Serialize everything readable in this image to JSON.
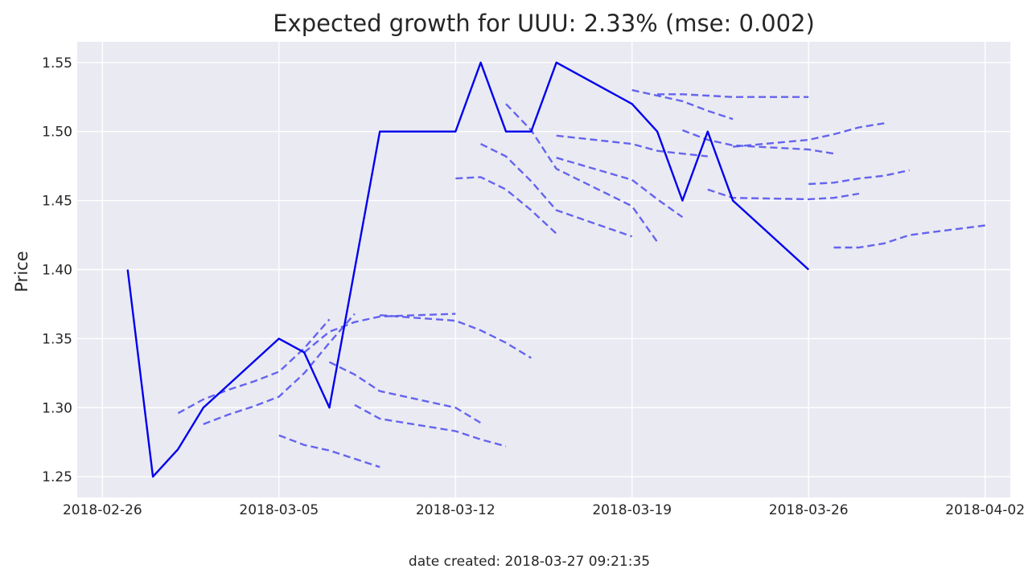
{
  "chart_data": {
    "type": "line",
    "title": "Expected growth for UUU: 2.33% (mse: 0.002)",
    "xlabel": "",
    "ylabel": "Price",
    "footer": "date created: 2018-03-27 09:21:35",
    "xlim": [
      "2018-02-25",
      "2018-04-03"
    ],
    "ylim": [
      1.235,
      1.565
    ],
    "grid": true,
    "x_ticks": [
      "2018-02-26",
      "2018-03-05",
      "2018-03-12",
      "2018-03-19",
      "2018-03-26",
      "2018-04-02"
    ],
    "y_ticks": [
      1.25,
      1.3,
      1.35,
      1.4,
      1.45,
      1.5,
      1.55
    ],
    "colors": {
      "actual": "#0000ee",
      "forecast": "#5555ee",
      "plot_bg": "#eaeaf2",
      "grid": "#ffffff"
    },
    "series": [
      {
        "style": "solid",
        "points": [
          [
            "2018-02-27",
            1.4
          ],
          [
            "2018-02-28",
            1.25
          ],
          [
            "2018-03-01",
            1.27
          ],
          [
            "2018-03-02",
            1.3
          ],
          [
            "2018-03-05",
            1.35
          ],
          [
            "2018-03-06",
            1.34
          ],
          [
            "2018-03-07",
            1.3
          ],
          [
            "2018-03-09",
            1.5
          ],
          [
            "2018-03-12",
            1.5
          ],
          [
            "2018-03-13",
            1.55
          ],
          [
            "2018-03-14",
            1.5
          ],
          [
            "2018-03-15",
            1.5
          ],
          [
            "2018-03-16",
            1.55
          ],
          [
            "2018-03-19",
            1.52
          ],
          [
            "2018-03-20",
            1.5
          ],
          [
            "2018-03-21",
            1.45
          ],
          [
            "2018-03-22",
            1.5
          ],
          [
            "2018-03-23",
            1.45
          ],
          [
            "2018-03-26",
            1.4
          ]
        ]
      },
      {
        "style": "dashed",
        "points": [
          [
            "2018-03-01",
            1.296
          ],
          [
            "2018-03-02",
            1.306
          ],
          [
            "2018-03-03",
            1.313
          ],
          [
            "2018-03-04",
            1.319
          ],
          [
            "2018-03-05",
            1.326
          ],
          [
            "2018-03-06",
            1.343
          ],
          [
            "2018-03-07",
            1.364
          ]
        ]
      },
      {
        "style": "dashed",
        "points": [
          [
            "2018-03-02",
            1.288
          ],
          [
            "2018-03-03",
            1.295
          ],
          [
            "2018-03-04",
            1.301
          ],
          [
            "2018-03-05",
            1.308
          ],
          [
            "2018-03-06",
            1.325
          ],
          [
            "2018-03-07",
            1.347
          ],
          [
            "2018-03-08",
            1.368
          ]
        ]
      },
      {
        "style": "dashed",
        "points": [
          [
            "2018-03-05",
            1.28
          ],
          [
            "2018-03-06",
            1.273
          ],
          [
            "2018-03-07",
            1.269
          ],
          [
            "2018-03-08",
            1.263
          ],
          [
            "2018-03-09",
            1.257
          ]
        ]
      },
      {
        "style": "dashed",
        "points": [
          [
            "2018-03-06",
            1.34
          ],
          [
            "2018-03-07",
            1.355
          ],
          [
            "2018-03-08",
            1.362
          ],
          [
            "2018-03-09",
            1.366
          ],
          [
            "2018-03-12",
            1.368
          ]
        ]
      },
      {
        "style": "dashed",
        "points": [
          [
            "2018-03-07",
            1.333
          ],
          [
            "2018-03-08",
            1.324
          ],
          [
            "2018-03-09",
            1.312
          ],
          [
            "2018-03-12",
            1.3
          ],
          [
            "2018-03-13",
            1.289
          ]
        ]
      },
      {
        "style": "dashed",
        "points": [
          [
            "2018-03-08",
            1.302
          ],
          [
            "2018-03-09",
            1.292
          ],
          [
            "2018-03-12",
            1.283
          ],
          [
            "2018-03-13",
            1.277
          ],
          [
            "2018-03-14",
            1.272
          ]
        ]
      },
      {
        "style": "dashed",
        "points": [
          [
            "2018-03-09",
            1.367
          ],
          [
            "2018-03-12",
            1.363
          ],
          [
            "2018-03-13",
            1.356
          ],
          [
            "2018-03-14",
            1.347
          ],
          [
            "2018-03-15",
            1.336
          ]
        ]
      },
      {
        "style": "dashed",
        "points": [
          [
            "2018-03-12",
            1.466
          ],
          [
            "2018-03-13",
            1.467
          ],
          [
            "2018-03-14",
            1.458
          ],
          [
            "2018-03-15",
            1.443
          ],
          [
            "2018-03-16",
            1.426
          ]
        ]
      },
      {
        "style": "dashed",
        "points": [
          [
            "2018-03-13",
            1.491
          ],
          [
            "2018-03-14",
            1.482
          ],
          [
            "2018-03-15",
            1.464
          ],
          [
            "2018-03-16",
            1.443
          ],
          [
            "2018-03-19",
            1.424
          ]
        ]
      },
      {
        "style": "dashed",
        "points": [
          [
            "2018-03-14",
            1.52
          ],
          [
            "2018-03-15",
            1.501
          ],
          [
            "2018-03-16",
            1.473
          ],
          [
            "2018-03-19",
            1.446
          ],
          [
            "2018-03-20",
            1.42
          ]
        ]
      },
      {
        "style": "dashed",
        "points": [
          [
            "2018-03-16",
            1.481
          ],
          [
            "2018-03-19",
            1.465
          ],
          [
            "2018-03-20",
            1.451
          ],
          [
            "2018-03-21",
            1.438
          ]
        ]
      },
      {
        "style": "dashed",
        "points": [
          [
            "2018-03-16",
            1.497
          ],
          [
            "2018-03-19",
            1.491
          ],
          [
            "2018-03-20",
            1.486
          ],
          [
            "2018-03-21",
            1.484
          ],
          [
            "2018-03-22",
            1.482
          ]
        ]
      },
      {
        "style": "dashed",
        "points": [
          [
            "2018-03-19",
            1.53
          ],
          [
            "2018-03-20",
            1.526
          ],
          [
            "2018-03-21",
            1.522
          ],
          [
            "2018-03-22",
            1.515
          ],
          [
            "2018-03-23",
            1.509
          ]
        ]
      },
      {
        "style": "dashed",
        "points": [
          [
            "2018-03-20",
            1.527
          ],
          [
            "2018-03-21",
            1.527
          ],
          [
            "2018-03-23",
            1.525
          ],
          [
            "2018-03-26",
            1.525
          ]
        ]
      },
      {
        "style": "dashed",
        "points": [
          [
            "2018-03-21",
            1.501
          ],
          [
            "2018-03-22",
            1.494
          ],
          [
            "2018-03-23",
            1.49
          ],
          [
            "2018-03-26",
            1.487
          ],
          [
            "2018-03-27",
            1.484
          ]
        ]
      },
      {
        "style": "dashed",
        "points": [
          [
            "2018-03-22",
            1.458
          ],
          [
            "2018-03-23",
            1.452
          ],
          [
            "2018-03-26",
            1.451
          ],
          [
            "2018-03-27",
            1.452
          ],
          [
            "2018-03-28",
            1.455
          ]
        ]
      },
      {
        "style": "dashed",
        "points": [
          [
            "2018-03-23",
            1.489
          ],
          [
            "2018-03-26",
            1.494
          ],
          [
            "2018-03-27",
            1.498
          ],
          [
            "2018-03-28",
            1.503
          ],
          [
            "2018-03-29",
            1.506
          ]
        ]
      },
      {
        "style": "dashed",
        "points": [
          [
            "2018-03-26",
            1.462
          ],
          [
            "2018-03-27",
            1.463
          ],
          [
            "2018-03-28",
            1.466
          ],
          [
            "2018-03-29",
            1.468
          ],
          [
            "2018-03-30",
            1.472
          ]
        ]
      },
      {
        "style": "dashed",
        "points": [
          [
            "2018-03-27",
            1.416
          ],
          [
            "2018-03-28",
            1.416
          ],
          [
            "2018-03-29",
            1.419
          ],
          [
            "2018-03-30",
            1.425
          ],
          [
            "2018-04-02",
            1.432
          ]
        ]
      }
    ]
  }
}
